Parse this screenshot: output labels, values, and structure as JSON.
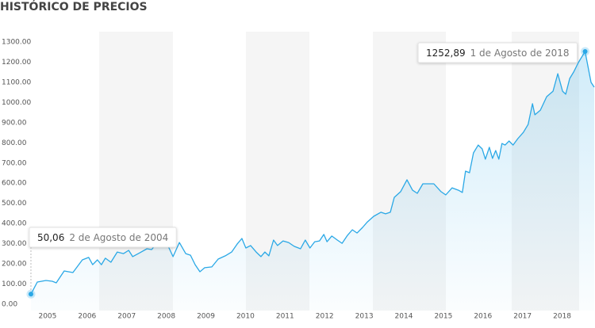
{
  "chart_data": {
    "type": "line",
    "title": "HISTÓRICO DE PRECIOS",
    "x": [
      2004.58,
      2004.74,
      2004.96,
      2005.12,
      2005.22,
      2005.42,
      2005.64,
      2005.88,
      2006.04,
      2006.14,
      2006.26,
      2006.36,
      2006.46,
      2006.6,
      2006.76,
      2006.92,
      2007.05,
      2007.15,
      2007.33,
      2007.51,
      2007.63,
      2007.77,
      2007.91,
      2008.03,
      2008.17,
      2008.33,
      2008.49,
      2008.61,
      2008.73,
      2008.85,
      2008.97,
      2009.15,
      2009.31,
      2009.49,
      2009.65,
      2009.79,
      2009.91,
      2010.01,
      2010.13,
      2010.27,
      2010.39,
      2010.49,
      2010.59,
      2010.71,
      2010.81,
      2010.95,
      2011.09,
      2011.23,
      2011.39,
      2011.51,
      2011.63,
      2011.75,
      2011.87,
      2011.98,
      2012.06,
      2012.18,
      2012.32,
      2012.44,
      2012.58,
      2012.7,
      2012.82,
      2012.96,
      2013.08,
      2013.24,
      2013.42,
      2013.54,
      2013.66,
      2013.76,
      2013.92,
      2014.08,
      2014.22,
      2014.34,
      2014.48,
      2014.76,
      2014.94,
      2015.06,
      2015.22,
      2015.38,
      2015.48,
      2015.56,
      2015.66,
      2015.76,
      2015.88,
      2015.98,
      2016.06,
      2016.16,
      2016.24,
      2016.32,
      2016.4,
      2016.48,
      2016.56,
      2016.66,
      2016.76,
      2016.88,
      2017.02,
      2017.14,
      2017.25,
      2017.31,
      2017.45,
      2017.61,
      2017.77,
      2017.89,
      2018.01,
      2018.09,
      2018.19,
      2018.29,
      2018.41,
      2018.58,
      2018.73,
      2018.81
    ],
    "series": [
      {
        "color": "#2aa8e6",
        "values": [
          50.06,
          110,
          118,
          114,
          106,
          165,
          157,
          220,
          232,
          196,
          220,
          196,
          228,
          208,
          259,
          251,
          267,
          236,
          255,
          275,
          271,
          306,
          342,
          295,
          236,
          306,
          251,
          243,
          196,
          161,
          181,
          185,
          224,
          240,
          259,
          298,
          326,
          279,
          291,
          259,
          236,
          259,
          240,
          318,
          291,
          314,
          306,
          287,
          275,
          318,
          279,
          310,
          314,
          346,
          310,
          338,
          318,
          302,
          342,
          369,
          353,
          381,
          408,
          436,
          456,
          448,
          456,
          530,
          558,
          617,
          565,
          550,
          597,
          597,
          558,
          542,
          577,
          565,
          554,
          660,
          652,
          750,
          789,
          770,
          719,
          778,
          723,
          762,
          719,
          797,
          789,
          809,
          789,
          821,
          852,
          891,
          994,
          939,
          962,
          1029,
          1056,
          1143,
          1056,
          1041,
          1119,
          1151,
          1198,
          1252.89,
          1100,
          1076
        ]
      }
    ],
    "annotations": [
      {
        "x": 2004.58,
        "value": 50.06,
        "label": "50,06",
        "date": "2 de Agosto de 2004"
      },
      {
        "x": 2018.58,
        "value": 1252.89,
        "label": "1252,89",
        "date": "1 de Agosto de 2018"
      }
    ],
    "xlim": [
      2004.4,
      2018.83
    ],
    "xticks": [
      2005,
      2006,
      2007,
      2008,
      2009,
      2010,
      2011,
      2012,
      2013,
      2014,
      2015,
      2016,
      2017,
      2018
    ],
    "ylim": [
      0,
      1300
    ],
    "yticks": [
      {
        "value": 0,
        "label": "0.00"
      },
      {
        "value": 100,
        "label": "100.00"
      },
      {
        "value": 200,
        "label": "200.00"
      },
      {
        "value": 300,
        "label": "300.00"
      },
      {
        "value": 400,
        "label": "400.00"
      },
      {
        "value": 500,
        "label": "500.00"
      },
      {
        "value": 600,
        "label": "600.00"
      },
      {
        "value": 700,
        "label": "700.00"
      },
      {
        "value": 800,
        "label": "800.00"
      },
      {
        "value": 900,
        "label": "900.00"
      },
      {
        "value": 1000,
        "label": "1000.00"
      },
      {
        "value": 1100,
        "label": "1100.00"
      },
      {
        "value": 1200,
        "label": "1200.00"
      },
      {
        "value": 1300,
        "label": "1300.00"
      }
    ]
  }
}
